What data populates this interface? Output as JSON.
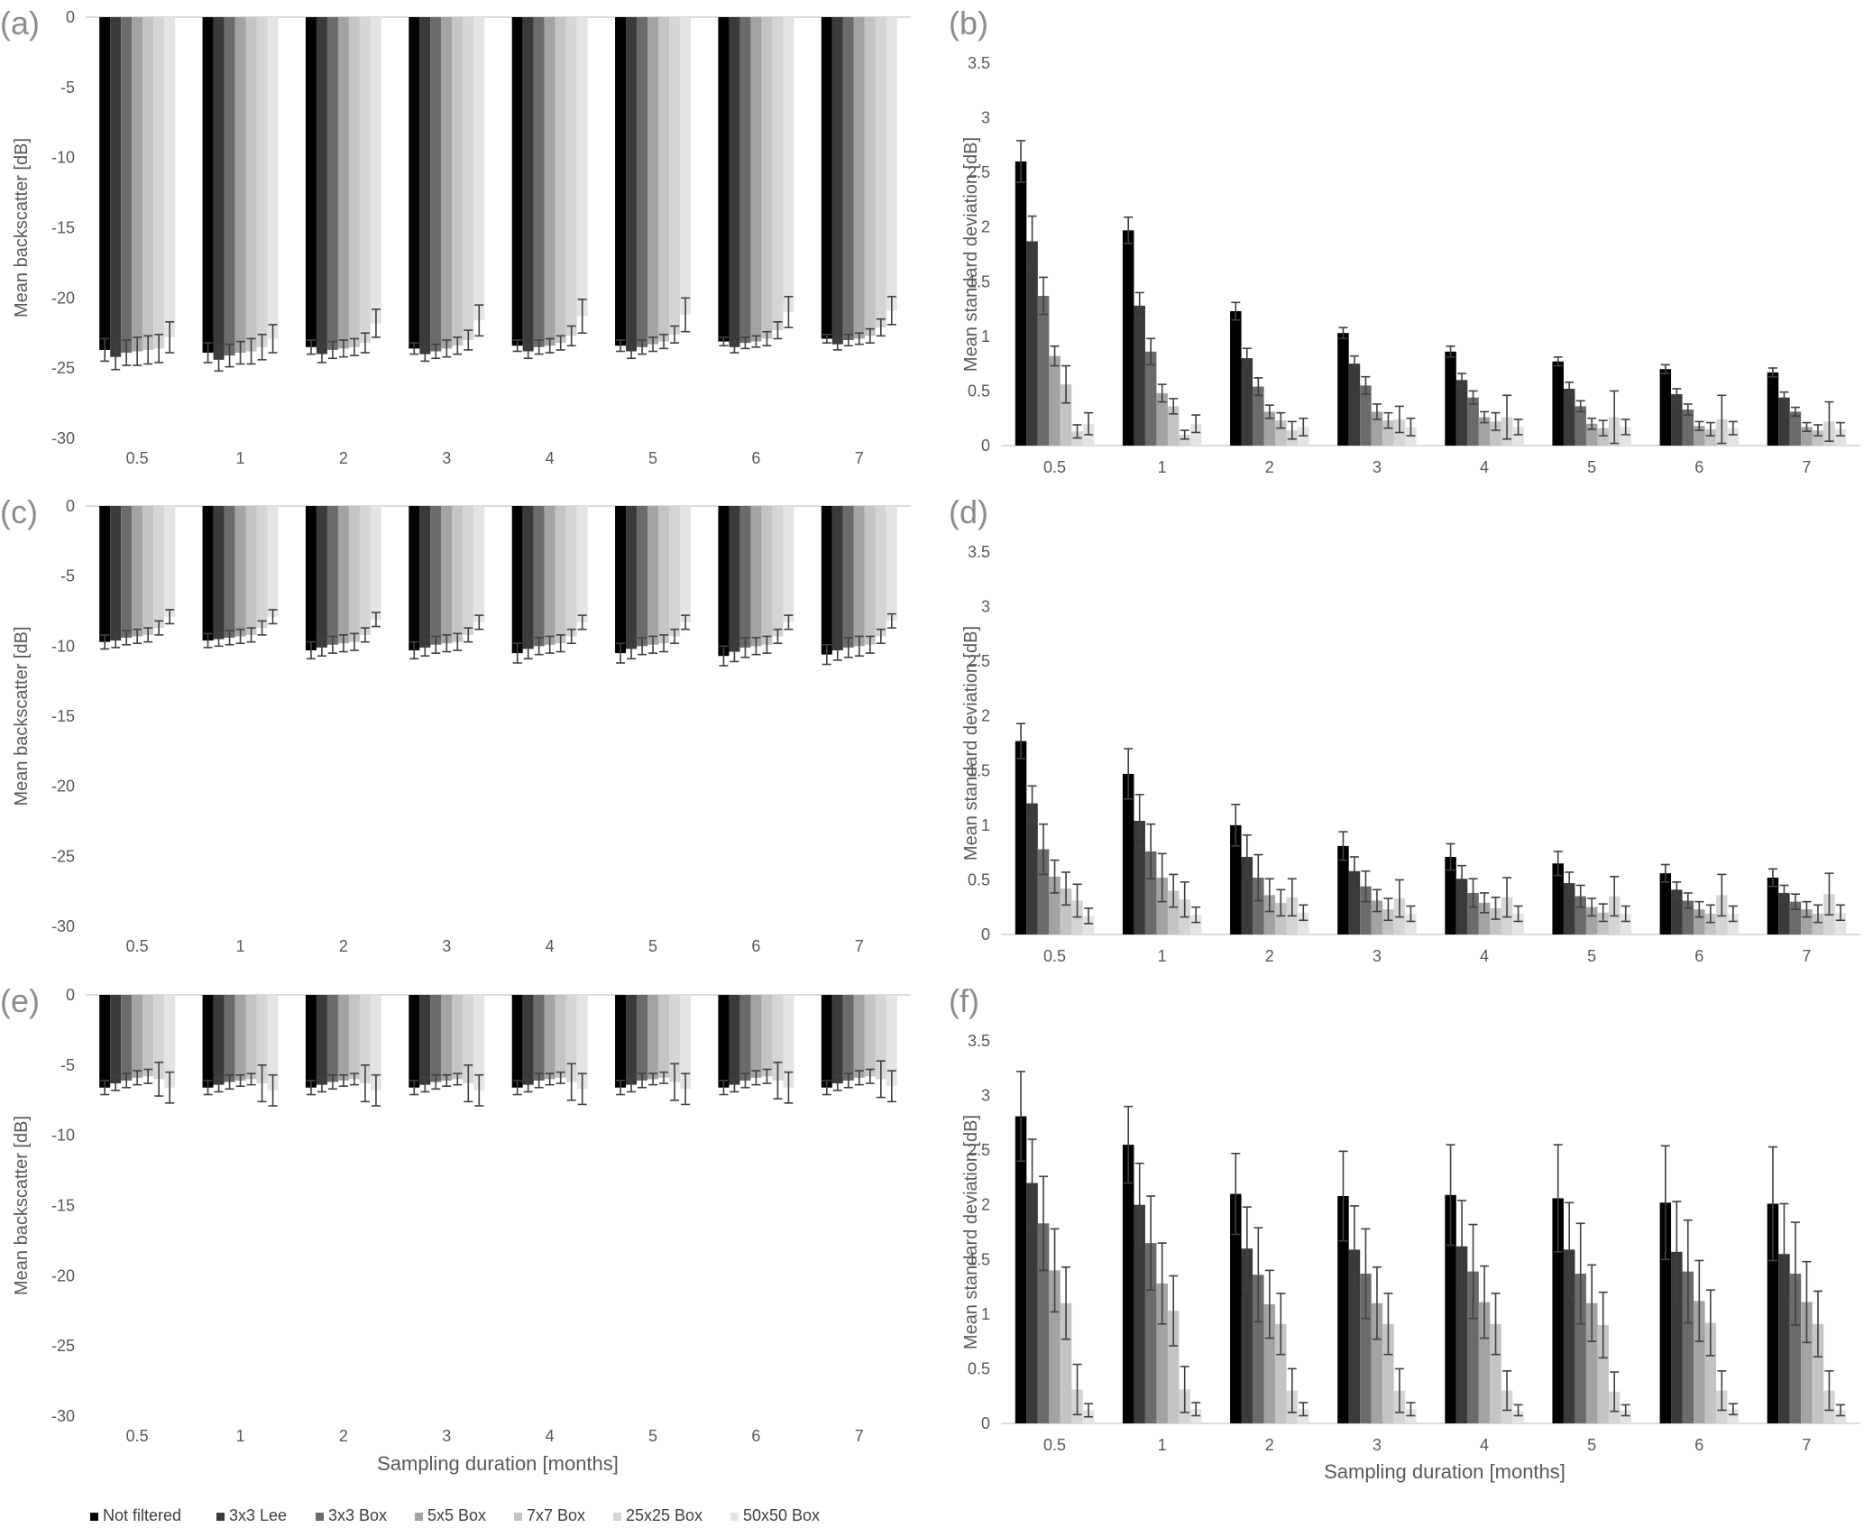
{
  "legend": [
    "Not filtered",
    "3x3 Lee",
    "3x3 Box",
    "5x5 Box",
    "7x7 Box",
    "25x25 Box",
    "50x50 Box"
  ],
  "series_colors": [
    "#000000",
    "#3a3a3a",
    "#6b6b6b",
    "#a3a3a3",
    "#c4c4c4",
    "#d5d5d5",
    "#e4e4e4"
  ],
  "xlabel_left": "Sampling duration [months]",
  "xlabel_right": "Sampling duration [months]",
  "chart_data": [
    {
      "panel": "(a)",
      "type": "bar",
      "categories": [
        "0.5",
        "1",
        "2",
        "3",
        "4",
        "5",
        "6",
        "7"
      ],
      "ylabel": "Mean backscatter [dB]",
      "ylim": [
        -30,
        0
      ],
      "yticks": [
        0,
        -5,
        -10,
        -15,
        -20,
        -25,
        -30
      ],
      "series": [
        {
          "name": "Not filtered",
          "values": [
            -23.7,
            -23.9,
            -23.5,
            -23.6,
            -23.4,
            -23.4,
            -23.1,
            -22.9
          ],
          "errors": [
            0.8,
            0.7,
            0.5,
            0.4,
            0.4,
            0.4,
            0.3,
            0.3
          ]
        },
        {
          "name": "3x3 Lee",
          "values": [
            -24.2,
            -24.4,
            -24.0,
            -24.0,
            -23.8,
            -23.8,
            -23.5,
            -23.3
          ],
          "errors": [
            0.9,
            0.8,
            0.6,
            0.5,
            0.5,
            0.5,
            0.4,
            0.4
          ]
        },
        {
          "name": "3x3 Box",
          "values": [
            -23.9,
            -24.1,
            -23.7,
            -23.8,
            -23.5,
            -23.5,
            -23.2,
            -23.0
          ],
          "errors": [
            0.9,
            0.8,
            0.6,
            0.5,
            0.5,
            0.5,
            0.4,
            0.4
          ]
        },
        {
          "name": "5x5 Box",
          "values": [
            -23.8,
            -23.9,
            -23.6,
            -23.6,
            -23.4,
            -23.3,
            -23.1,
            -22.9
          ],
          "errors": [
            1.0,
            0.8,
            0.6,
            0.6,
            0.5,
            0.5,
            0.4,
            0.4
          ]
        },
        {
          "name": "7x7 Box",
          "values": [
            -23.7,
            -23.8,
            -23.5,
            -23.4,
            -23.2,
            -23.1,
            -22.9,
            -22.7
          ],
          "errors": [
            1.0,
            0.9,
            0.6,
            0.6,
            0.5,
            0.5,
            0.5,
            0.5
          ]
        },
        {
          "name": "25x25 Box",
          "values": [
            -23.6,
            -23.5,
            -23.2,
            -23.0,
            -22.7,
            -22.6,
            -22.3,
            -22.1
          ],
          "errors": [
            1.0,
            0.9,
            0.7,
            0.7,
            0.7,
            0.6,
            0.6,
            0.6
          ]
        },
        {
          "name": "50x50 Box",
          "values": [
            -22.8,
            -22.9,
            -21.8,
            -21.6,
            -21.3,
            -21.2,
            -21.0,
            -20.9
          ],
          "errors": [
            1.1,
            1.0,
            1.0,
            1.1,
            1.2,
            1.2,
            1.1,
            1.0
          ]
        }
      ]
    },
    {
      "panel": "(b)",
      "type": "bar",
      "categories": [
        "0.5",
        "1",
        "2",
        "3",
        "4",
        "5",
        "6",
        "7"
      ],
      "ylabel": "Mean standard deviation [dB]",
      "ylim": [
        0,
        3.5
      ],
      "yticks": [
        0,
        0.5,
        1,
        1.5,
        2,
        2.5,
        3,
        3.5
      ],
      "series": [
        {
          "name": "Not filtered",
          "values": [
            2.6,
            1.97,
            1.23,
            1.03,
            0.86,
            0.77,
            0.7,
            0.67
          ],
          "errors": [
            0.19,
            0.12,
            0.08,
            0.05,
            0.05,
            0.04,
            0.04,
            0.04
          ]
        },
        {
          "name": "3x3 Lee",
          "values": [
            1.87,
            1.28,
            0.8,
            0.75,
            0.6,
            0.52,
            0.47,
            0.44
          ],
          "errors": [
            0.23,
            0.12,
            0.09,
            0.07,
            0.06,
            0.06,
            0.05,
            0.05
          ]
        },
        {
          "name": "3x3 Box",
          "values": [
            1.37,
            0.86,
            0.54,
            0.55,
            0.44,
            0.36,
            0.33,
            0.31
          ],
          "errors": [
            0.17,
            0.12,
            0.08,
            0.08,
            0.06,
            0.05,
            0.05,
            0.04
          ]
        },
        {
          "name": "5x5 Box",
          "values": [
            0.82,
            0.48,
            0.31,
            0.31,
            0.26,
            0.2,
            0.18,
            0.17
          ],
          "errors": [
            0.09,
            0.08,
            0.06,
            0.07,
            0.05,
            0.05,
            0.04,
            0.04
          ]
        },
        {
          "name": "7x7 Box",
          "values": [
            0.56,
            0.36,
            0.23,
            0.23,
            0.22,
            0.16,
            0.15,
            0.14
          ],
          "errors": [
            0.17,
            0.07,
            0.07,
            0.07,
            0.08,
            0.07,
            0.06,
            0.05
          ]
        },
        {
          "name": "25x25 Box",
          "values": [
            0.13,
            0.1,
            0.14,
            0.24,
            0.26,
            0.26,
            0.24,
            0.22
          ],
          "errors": [
            0.06,
            0.04,
            0.08,
            0.12,
            0.2,
            0.24,
            0.22,
            0.18
          ]
        },
        {
          "name": "50x50 Box",
          "values": [
            0.2,
            0.2,
            0.17,
            0.17,
            0.17,
            0.17,
            0.16,
            0.15
          ],
          "errors": [
            0.1,
            0.08,
            0.08,
            0.08,
            0.07,
            0.07,
            0.06,
            0.06
          ]
        }
      ]
    },
    {
      "panel": "(c)",
      "type": "bar",
      "categories": [
        "0.5",
        "1",
        "2",
        "3",
        "4",
        "5",
        "6",
        "7"
      ],
      "ylabel": "Mean backscatter [dB]",
      "ylim": [
        -30,
        0
      ],
      "yticks": [
        0,
        -5,
        -10,
        -15,
        -20,
        -25,
        -30
      ],
      "series": [
        {
          "name": "Not filtered",
          "values": [
            -9.7,
            -9.6,
            -10.3,
            -10.3,
            -10.5,
            -10.5,
            -10.7,
            -10.6
          ],
          "errors": [
            0.5,
            0.5,
            0.6,
            0.6,
            0.7,
            0.7,
            0.7,
            0.7
          ]
        },
        {
          "name": "3x3 Lee",
          "values": [
            -9.6,
            -9.5,
            -10.1,
            -10.1,
            -10.2,
            -10.2,
            -10.4,
            -10.3
          ],
          "errors": [
            0.5,
            0.5,
            0.6,
            0.6,
            0.7,
            0.7,
            0.7,
            0.7
          ]
        },
        {
          "name": "3x3 Box",
          "values": [
            -9.4,
            -9.4,
            -9.9,
            -9.9,
            -10.0,
            -10.0,
            -10.1,
            -10.1
          ],
          "errors": [
            0.5,
            0.5,
            0.6,
            0.6,
            0.6,
            0.6,
            0.7,
            0.7
          ]
        },
        {
          "name": "5x5 Box",
          "values": [
            -9.3,
            -9.3,
            -9.8,
            -9.8,
            -9.9,
            -9.9,
            -10.0,
            -10.0
          ],
          "errors": [
            0.5,
            0.5,
            0.6,
            0.6,
            0.6,
            0.6,
            0.6,
            0.7
          ]
        },
        {
          "name": "7x7 Box",
          "values": [
            -9.2,
            -9.2,
            -9.7,
            -9.7,
            -9.8,
            -9.8,
            -9.9,
            -9.9
          ],
          "errors": [
            0.5,
            0.5,
            0.6,
            0.6,
            0.6,
            0.6,
            0.6,
            0.6
          ]
        },
        {
          "name": "25x25 Box",
          "values": [
            -8.7,
            -8.7,
            -9.2,
            -9.2,
            -9.3,
            -9.3,
            -9.3,
            -9.3
          ],
          "errors": [
            0.5,
            0.5,
            0.5,
            0.5,
            0.5,
            0.5,
            0.5,
            0.5
          ]
        },
        {
          "name": "50x50 Box",
          "values": [
            -7.9,
            -7.9,
            -8.1,
            -8.3,
            -8.3,
            -8.3,
            -8.3,
            -8.2
          ],
          "errors": [
            0.5,
            0.5,
            0.5,
            0.5,
            0.5,
            0.5,
            0.5,
            0.5
          ]
        }
      ]
    },
    {
      "panel": "(d)",
      "type": "bar",
      "categories": [
        "0.5",
        "1",
        "2",
        "3",
        "4",
        "5",
        "6",
        "7"
      ],
      "ylabel": "Mean standard deviation [dB]",
      "ylim": [
        0,
        3.5
      ],
      "yticks": [
        0,
        0.5,
        1,
        1.5,
        2,
        2.5,
        3,
        3.5
      ],
      "series": [
        {
          "name": "Not filtered",
          "values": [
            1.77,
            1.47,
            1.0,
            0.81,
            0.71,
            0.65,
            0.56,
            0.52
          ],
          "errors": [
            0.16,
            0.23,
            0.19,
            0.13,
            0.12,
            0.11,
            0.08,
            0.08
          ]
        },
        {
          "name": "3x3 Lee",
          "values": [
            1.2,
            1.04,
            0.71,
            0.58,
            0.51,
            0.47,
            0.41,
            0.38
          ],
          "errors": [
            0.16,
            0.24,
            0.2,
            0.13,
            0.12,
            0.1,
            0.07,
            0.07
          ]
        },
        {
          "name": "3x3 Box",
          "values": [
            0.78,
            0.76,
            0.52,
            0.44,
            0.38,
            0.35,
            0.31,
            0.3
          ],
          "errors": [
            0.23,
            0.25,
            0.21,
            0.14,
            0.13,
            0.1,
            0.07,
            0.07
          ]
        },
        {
          "name": "5x5 Box",
          "values": [
            0.53,
            0.52,
            0.36,
            0.31,
            0.29,
            0.25,
            0.23,
            0.23
          ],
          "errors": [
            0.15,
            0.22,
            0.15,
            0.1,
            0.09,
            0.08,
            0.07,
            0.07
          ]
        },
        {
          "name": "7x7 Box",
          "values": [
            0.42,
            0.4,
            0.29,
            0.23,
            0.24,
            0.2,
            0.19,
            0.19
          ],
          "errors": [
            0.15,
            0.15,
            0.12,
            0.1,
            0.1,
            0.08,
            0.08,
            0.08
          ]
        },
        {
          "name": "25x25 Box",
          "values": [
            0.31,
            0.32,
            0.34,
            0.33,
            0.34,
            0.35,
            0.36,
            0.37
          ],
          "errors": [
            0.15,
            0.16,
            0.17,
            0.17,
            0.18,
            0.18,
            0.19,
            0.19
          ]
        },
        {
          "name": "50x50 Box",
          "values": [
            0.17,
            0.18,
            0.2,
            0.19,
            0.19,
            0.19,
            0.19,
            0.2
          ],
          "errors": [
            0.07,
            0.07,
            0.07,
            0.07,
            0.07,
            0.07,
            0.07,
            0.07
          ]
        }
      ]
    },
    {
      "panel": "(e)",
      "type": "bar",
      "categories": [
        "0.5",
        "1",
        "2",
        "3",
        "4",
        "5",
        "6",
        "7"
      ],
      "ylabel": "Mean backscatter [dB]",
      "ylim": [
        -30,
        0
      ],
      "yticks": [
        0,
        -5,
        -10,
        -15,
        -20,
        -25,
        -30
      ],
      "series": [
        {
          "name": "Not filtered",
          "values": [
            -6.6,
            -6.6,
            -6.6,
            -6.6,
            -6.6,
            -6.6,
            -6.6,
            -6.6
          ],
          "errors": [
            0.5,
            0.5,
            0.5,
            0.5,
            0.5,
            0.5,
            0.5,
            0.5
          ]
        },
        {
          "name": "3x3 Lee",
          "values": [
            -6.3,
            -6.4,
            -6.4,
            -6.4,
            -6.4,
            -6.4,
            -6.4,
            -6.3
          ],
          "errors": [
            0.5,
            0.5,
            0.5,
            0.5,
            0.5,
            0.5,
            0.5,
            0.5
          ]
        },
        {
          "name": "3x3 Box",
          "values": [
            -6.1,
            -6.2,
            -6.2,
            -6.2,
            -6.1,
            -6.1,
            -6.1,
            -6.1
          ],
          "errors": [
            0.5,
            0.5,
            0.5,
            0.5,
            0.5,
            0.5,
            0.5,
            0.5
          ]
        },
        {
          "name": "5x5 Box",
          "values": [
            -5.9,
            -6.1,
            -6.1,
            -6.1,
            -6.0,
            -6.0,
            -5.9,
            -5.9
          ],
          "errors": [
            0.5,
            0.4,
            0.4,
            0.4,
            0.4,
            0.4,
            0.5,
            0.5
          ]
        },
        {
          "name": "7x7 Box",
          "values": [
            -5.8,
            -6.0,
            -6.0,
            -6.0,
            -5.9,
            -5.9,
            -5.8,
            -5.8
          ],
          "errors": [
            0.5,
            0.4,
            0.4,
            0.4,
            0.4,
            0.4,
            0.5,
            0.5
          ]
        },
        {
          "name": "25x25 Box",
          "values": [
            -6.0,
            -6.3,
            -6.3,
            -6.3,
            -6.2,
            -6.2,
            -6.1,
            -6.0
          ],
          "errors": [
            1.2,
            1.3,
            1.3,
            1.3,
            1.3,
            1.3,
            1.3,
            1.3
          ]
        },
        {
          "name": "50x50 Box",
          "values": [
            -6.6,
            -6.8,
            -6.8,
            -6.8,
            -6.7,
            -6.7,
            -6.6,
            -6.5
          ],
          "errors": [
            1.1,
            1.1,
            1.1,
            1.1,
            1.1,
            1.1,
            1.1,
            1.1
          ]
        }
      ]
    },
    {
      "panel": "(f)",
      "type": "bar",
      "categories": [
        "0.5",
        "1",
        "2",
        "3",
        "4",
        "5",
        "6",
        "7"
      ],
      "ylabel": "Mean standard deviation [dB]",
      "ylim": [
        0,
        3.5
      ],
      "yticks": [
        0,
        0.5,
        1,
        1.5,
        2,
        2.5,
        3,
        3.5
      ],
      "series": [
        {
          "name": "Not filtered",
          "values": [
            2.81,
            2.55,
            2.1,
            2.08,
            2.09,
            2.06,
            2.02,
            2.01
          ],
          "errors": [
            0.41,
            0.35,
            0.37,
            0.41,
            0.46,
            0.49,
            0.52,
            0.52
          ]
        },
        {
          "name": "3x3 Lee",
          "values": [
            2.2,
            2.0,
            1.6,
            1.59,
            1.62,
            1.59,
            1.57,
            1.55
          ],
          "errors": [
            0.4,
            0.38,
            0.38,
            0.4,
            0.42,
            0.43,
            0.46,
            0.46
          ]
        },
        {
          "name": "3x3 Box",
          "values": [
            1.83,
            1.65,
            1.36,
            1.37,
            1.39,
            1.37,
            1.39,
            1.37
          ],
          "errors": [
            0.43,
            0.43,
            0.43,
            0.41,
            0.43,
            0.46,
            0.47,
            0.47
          ]
        },
        {
          "name": "5x5 Box",
          "values": [
            1.4,
            1.28,
            1.09,
            1.1,
            1.11,
            1.1,
            1.12,
            1.11
          ],
          "errors": [
            0.38,
            0.37,
            0.31,
            0.33,
            0.33,
            0.35,
            0.37,
            0.37
          ]
        },
        {
          "name": "7x7 Box",
          "values": [
            1.1,
            1.03,
            0.91,
            0.91,
            0.91,
            0.9,
            0.92,
            0.91
          ],
          "errors": [
            0.33,
            0.32,
            0.28,
            0.28,
            0.28,
            0.3,
            0.3,
            0.3
          ]
        },
        {
          "name": "25x25 Box",
          "values": [
            0.31,
            0.31,
            0.3,
            0.3,
            0.3,
            0.29,
            0.3,
            0.3
          ],
          "errors": [
            0.23,
            0.21,
            0.2,
            0.2,
            0.18,
            0.18,
            0.18,
            0.18
          ]
        },
        {
          "name": "50x50 Box",
          "values": [
            0.12,
            0.13,
            0.13,
            0.13,
            0.12,
            0.12,
            0.13,
            0.12
          ],
          "errors": [
            0.06,
            0.06,
            0.06,
            0.06,
            0.05,
            0.05,
            0.05,
            0.05
          ]
        }
      ]
    }
  ]
}
